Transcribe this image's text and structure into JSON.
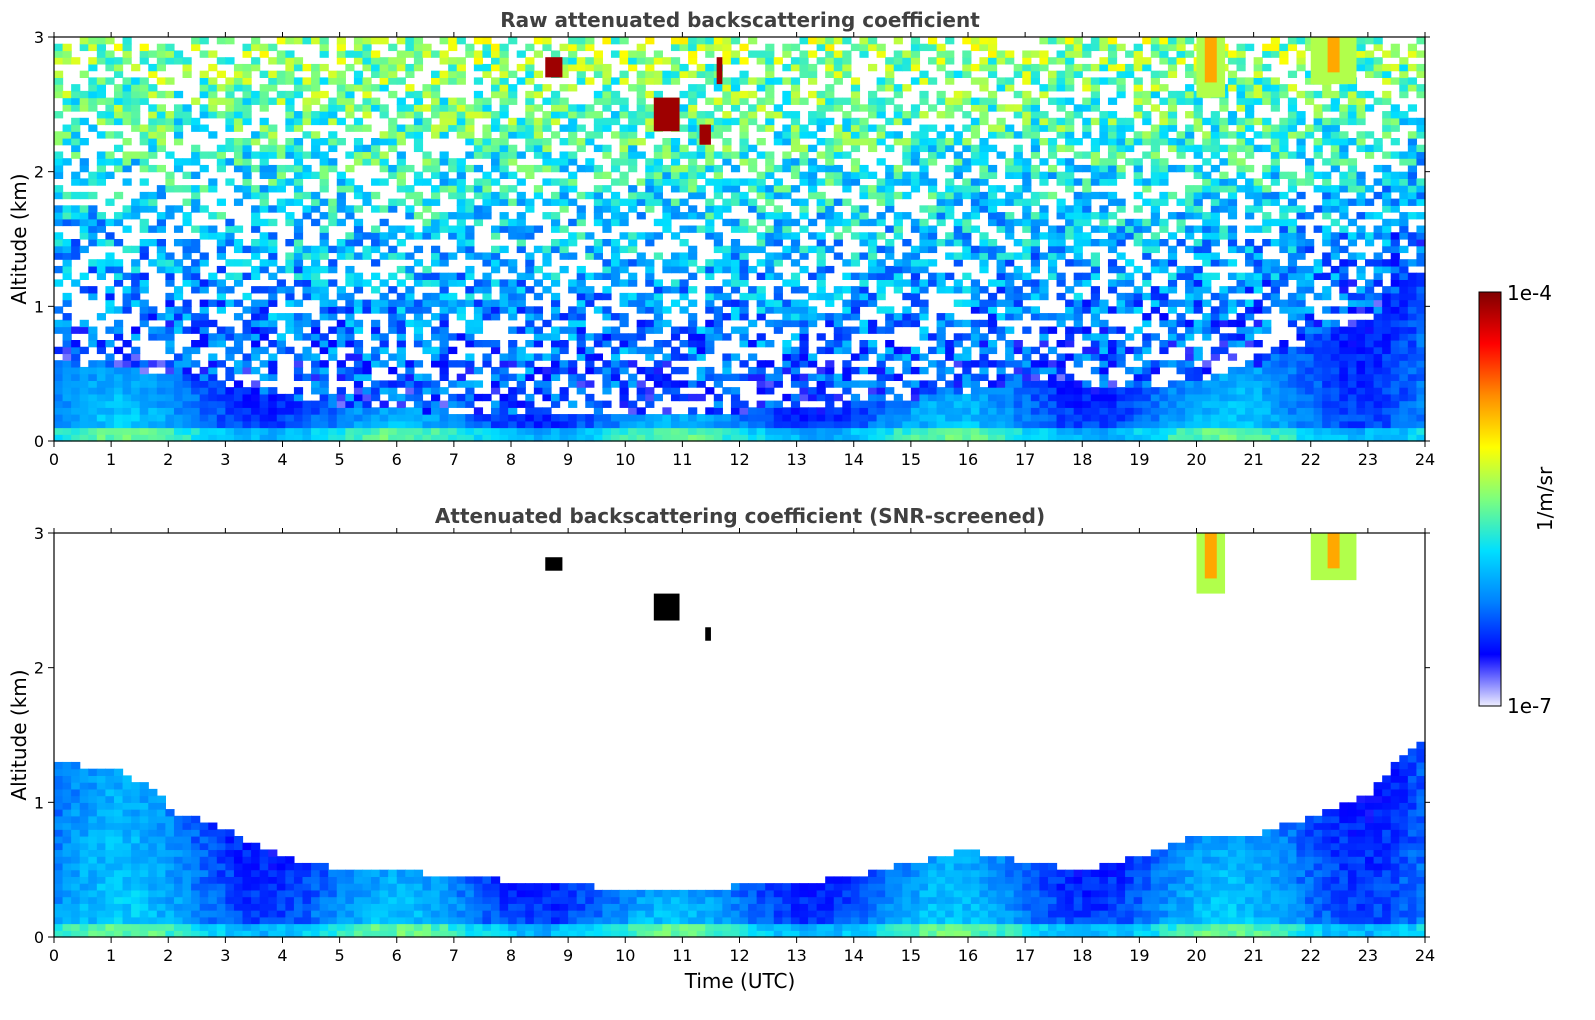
{
  "chart_data": [
    {
      "type": "heatmap",
      "title": "Raw attenuated backscattering coefficient",
      "xlabel": "",
      "ylabel": "Altitude (km)",
      "xlim": [
        0,
        24
      ],
      "ylim": [
        0,
        3
      ],
      "x_ticks": [
        "0",
        "1",
        "2",
        "3",
        "4",
        "5",
        "6",
        "7",
        "8",
        "9",
        "10",
        "11",
        "12",
        "13",
        "14",
        "15",
        "16",
        "17",
        "18",
        "19",
        "20",
        "21",
        "22",
        "23",
        "24"
      ],
      "y_ticks": [
        "0",
        "1",
        "2",
        "3"
      ],
      "boundary_layer_top_km": [
        [
          0,
          0.6
        ],
        [
          2,
          0.5
        ],
        [
          4,
          0.35
        ],
        [
          5,
          0.25
        ],
        [
          8,
          0.2
        ],
        [
          12,
          0.22
        ],
        [
          15,
          0.3
        ],
        [
          17,
          0.45
        ],
        [
          19,
          0.4
        ],
        [
          20,
          0.45
        ],
        [
          21,
          0.55
        ],
        [
          22,
          0.75
        ],
        [
          23,
          0.9
        ],
        [
          24,
          1.3
        ]
      ],
      "cloud_features": [
        {
          "time_start": 8.6,
          "time_end": 8.9,
          "alt_low_km": 2.7,
          "alt_high_km": 2.85
        },
        {
          "time_start": 10.5,
          "time_end": 10.95,
          "alt_low_km": 2.3,
          "alt_high_km": 2.55
        },
        {
          "time_start": 11.3,
          "time_end": 11.5,
          "alt_low_km": 2.2,
          "alt_high_km": 2.35
        },
        {
          "time_start": 11.6,
          "time_end": 11.7,
          "alt_low_km": 2.65,
          "alt_high_km": 2.85
        },
        {
          "time_start": 20.0,
          "time_end": 20.5,
          "alt_low_km": 2.55,
          "alt_high_km": 3.0
        },
        {
          "time_start": 22.0,
          "time_end": 22.8,
          "alt_low_km": 2.65,
          "alt_high_km": 3.0
        }
      ]
    },
    {
      "type": "heatmap",
      "title": "Attenuated backscattering coefficient (SNR-screened)",
      "xlabel": "Time (UTC)",
      "ylabel": "Altitude (km)",
      "xlim": [
        0,
        24
      ],
      "ylim": [
        0,
        3
      ],
      "x_ticks": [
        "0",
        "1",
        "2",
        "3",
        "4",
        "5",
        "6",
        "7",
        "8",
        "9",
        "10",
        "11",
        "12",
        "13",
        "14",
        "15",
        "16",
        "17",
        "18",
        "19",
        "20",
        "21",
        "22",
        "23",
        "24"
      ],
      "y_ticks": [
        "0",
        "1",
        "2",
        "3"
      ],
      "valid_signal_top_km": [
        [
          0,
          1.3
        ],
        [
          1,
          1.25
        ],
        [
          1.8,
          1.1
        ],
        [
          2,
          0.95
        ],
        [
          3,
          0.8
        ],
        [
          4,
          0.6
        ],
        [
          5,
          0.5
        ],
        [
          6,
          0.5
        ],
        [
          7,
          0.45
        ],
        [
          8,
          0.42
        ],
        [
          9,
          0.4
        ],
        [
          10,
          0.35
        ],
        [
          11,
          0.35
        ],
        [
          12,
          0.38
        ],
        [
          13,
          0.4
        ],
        [
          14,
          0.45
        ],
        [
          15,
          0.55
        ],
        [
          16,
          0.65
        ],
        [
          17,
          0.55
        ],
        [
          18,
          0.5
        ],
        [
          19,
          0.6
        ],
        [
          20,
          0.75
        ],
        [
          21,
          0.75
        ],
        [
          22,
          0.9
        ],
        [
          23,
          1.05
        ],
        [
          23.5,
          1.3
        ],
        [
          24,
          1.45
        ]
      ],
      "cloud_features": [
        {
          "time_start": 8.6,
          "time_end": 8.9,
          "alt_low_km": 2.72,
          "alt_high_km": 2.82
        },
        {
          "time_start": 10.5,
          "time_end": 10.95,
          "alt_low_km": 2.35,
          "alt_high_km": 2.55
        },
        {
          "time_start": 11.4,
          "time_end": 11.5,
          "alt_low_km": 2.2,
          "alt_high_km": 2.3
        },
        {
          "time_start": 20.0,
          "time_end": 20.5,
          "alt_low_km": 2.55,
          "alt_high_km": 3.0
        },
        {
          "time_start": 22.0,
          "time_end": 22.8,
          "alt_low_km": 2.65,
          "alt_high_km": 3.0
        }
      ]
    }
  ],
  "colorbar": {
    "label": "1/m/sr",
    "min_label": "1e-7",
    "max_label": "1e-4",
    "colormap": [
      "#eeeeff",
      "#0000ff",
      "#0080ff",
      "#00dfff",
      "#7dff7d",
      "#ffff00",
      "#ff8c00",
      "#ff0000",
      "#800000"
    ]
  }
}
